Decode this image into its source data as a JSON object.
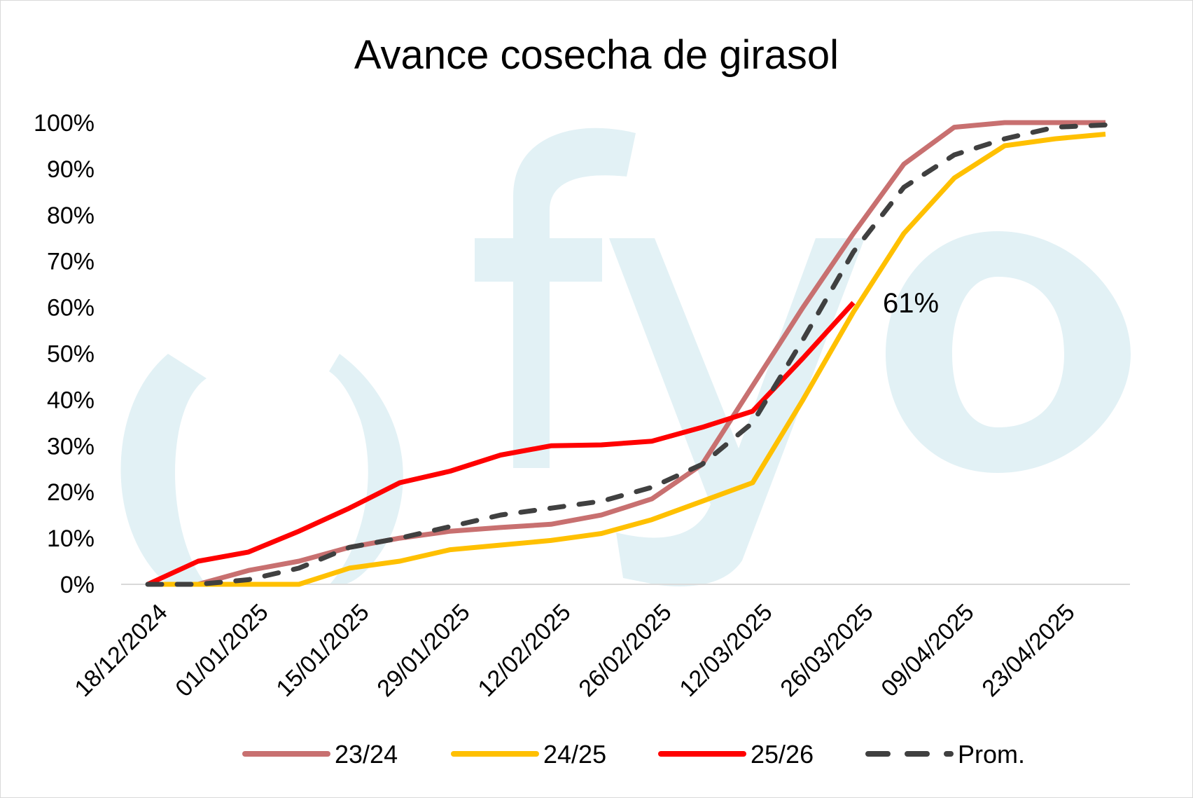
{
  "chart_data": {
    "type": "line",
    "title": "Avance cosecha de girasol",
    "xlabel": "",
    "ylabel": "",
    "ylim": [
      0,
      100
    ],
    "y_ticks": [
      "0%",
      "10%",
      "20%",
      "30%",
      "40%",
      "50%",
      "60%",
      "70%",
      "80%",
      "90%",
      "100%"
    ],
    "x_tick_labels": [
      "18/12/2024",
      "01/01/2025",
      "15/01/2025",
      "29/01/2025",
      "12/02/2025",
      "26/02/2025",
      "12/03/2025",
      "26/03/2025",
      "09/04/2025",
      "23/04/2025"
    ],
    "x_dates": [
      "18/12",
      "25/12",
      "01/01",
      "08/01",
      "15/01",
      "22/01",
      "29/01",
      "05/02",
      "12/02",
      "19/02",
      "26/02",
      "05/03",
      "12/03",
      "19/03",
      "26/03",
      "02/04",
      "09/04",
      "16/04",
      "23/04",
      "30/04"
    ],
    "series": [
      {
        "name": "23/24",
        "color": "#c87070",
        "dash": false,
        "values": [
          0,
          0,
          3,
          5,
          8,
          10,
          11.5,
          12.3,
          13,
          15,
          18.5,
          26,
          43,
          60,
          76,
          91,
          99,
          100,
          100,
          100
        ]
      },
      {
        "name": "24/25",
        "color": "#ffc000",
        "dash": false,
        "values": [
          0,
          0,
          0,
          0,
          3.5,
          5,
          7.5,
          8.5,
          9.5,
          11,
          14,
          18,
          22,
          40,
          59,
          76,
          88,
          95,
          96.5,
          97.5
        ]
      },
      {
        "name": "25/26",
        "color": "#ff0000",
        "dash": false,
        "values": [
          0,
          5,
          7,
          11.5,
          16.5,
          22,
          24.5,
          28,
          30,
          30.2,
          31,
          34,
          37.5,
          49,
          61,
          null,
          null,
          null,
          null,
          null
        ]
      },
      {
        "name": "Prom.",
        "color": "#404040",
        "dash": true,
        "values": [
          0,
          0,
          1,
          3.5,
          8,
          10,
          12.5,
          15,
          16.5,
          18,
          21,
          26,
          35,
          53,
          72,
          86,
          93,
          96.5,
          99,
          99.5
        ]
      }
    ],
    "annotation": {
      "text": "61%",
      "series": "25/26",
      "index": 14
    },
    "legend_position": "bottom",
    "grid": false
  },
  "watermark": {
    "text": "fyo",
    "color": "#e2f1f5"
  }
}
